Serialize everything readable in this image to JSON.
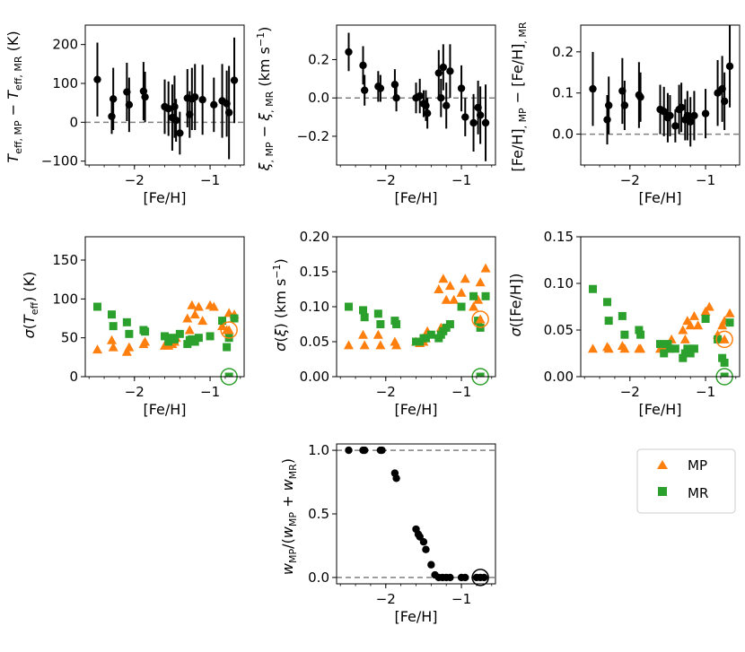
{
  "colors": {
    "mp": "#ff7f0e",
    "mr": "#2ca02c",
    "point": "#000000",
    "dash": "#808080",
    "legend_border": "#cccccc"
  },
  "legend": {
    "mp": "MP",
    "mr": "MR"
  },
  "chart_data": [
    {
      "id": "dTeff",
      "type": "scatter",
      "xlabel": "[Fe/H]",
      "ylabel": "T_eff,MP − T_eff,MR (K)",
      "xlim": [
        -2.65,
        -0.55
      ],
      "ylim": [
        -110,
        250
      ],
      "xticks": [
        -2,
        -1
      ],
      "xtick_labels": [
        "−2",
        "−1"
      ],
      "yticks": [
        -100,
        0,
        100,
        200
      ],
      "ytick_labels": [
        "−100",
        "0",
        "100",
        "200"
      ],
      "hlines": [
        0
      ],
      "points": [
        {
          "x": -2.49,
          "y": 110,
          "e": 95
        },
        {
          "x": -2.3,
          "y": 15,
          "e": 45
        },
        {
          "x": -2.28,
          "y": 60,
          "e": 80
        },
        {
          "x": -2.1,
          "y": 78,
          "e": 75
        },
        {
          "x": -2.07,
          "y": 45,
          "e": 70
        },
        {
          "x": -1.88,
          "y": 80,
          "e": 75
        },
        {
          "x": -1.86,
          "y": 65,
          "e": 65
        },
        {
          "x": -1.6,
          "y": 40,
          "e": 70
        },
        {
          "x": -1.55,
          "y": 35,
          "e": 70
        },
        {
          "x": -1.5,
          "y": 12,
          "e": 85
        },
        {
          "x": -1.47,
          "y": 40,
          "e": 80
        },
        {
          "x": -1.45,
          "y": 5,
          "e": 55
        },
        {
          "x": -1.4,
          "y": -28,
          "e": 55
        },
        {
          "x": -1.3,
          "y": 62,
          "e": 75
        },
        {
          "x": -1.27,
          "y": 20,
          "e": 60
        },
        {
          "x": -1.24,
          "y": 60,
          "e": 80
        },
        {
          "x": -1.2,
          "y": 65,
          "e": 85
        },
        {
          "x": -1.1,
          "y": 58,
          "e": 90
        },
        {
          "x": -0.95,
          "y": 45,
          "e": 70
        },
        {
          "x": -0.84,
          "y": 55,
          "e": 95
        },
        {
          "x": -0.78,
          "y": 48,
          "e": 85
        },
        {
          "x": -0.75,
          "y": 25,
          "e": 120
        },
        {
          "x": -0.68,
          "y": 108,
          "e": 110
        }
      ]
    },
    {
      "id": "dxi",
      "type": "scatter",
      "xlabel": "[Fe/H]",
      "ylabel": "ξ,MP − ξ,MR (km s⁻¹)",
      "xlim": [
        -2.65,
        -0.55
      ],
      "ylim": [
        -0.35,
        0.38
      ],
      "xticks": [
        -2,
        -1
      ],
      "xtick_labels": [
        "−2",
        "−1"
      ],
      "yticks": [
        -0.2,
        0.0,
        0.2
      ],
      "ytick_labels": [
        "−0.2",
        "0.0",
        "0.2"
      ],
      "hlines": [
        0
      ],
      "points": [
        {
          "x": -2.49,
          "y": 0.24,
          "e": 0.1
        },
        {
          "x": -2.3,
          "y": 0.17,
          "e": 0.1
        },
        {
          "x": -2.28,
          "y": 0.04,
          "e": 0.08
        },
        {
          "x": -2.1,
          "y": 0.06,
          "e": 0.08
        },
        {
          "x": -2.07,
          "y": 0.05,
          "e": 0.07
        },
        {
          "x": -1.88,
          "y": 0.07,
          "e": 0.08
        },
        {
          "x": -1.86,
          "y": 0.0,
          "e": 0.07
        },
        {
          "x": -1.6,
          "y": 0.0,
          "e": 0.08
        },
        {
          "x": -1.55,
          "y": 0.01,
          "e": 0.09
        },
        {
          "x": -1.5,
          "y": -0.03,
          "e": 0.07
        },
        {
          "x": -1.47,
          "y": -0.04,
          "e": 0.08
        },
        {
          "x": -1.45,
          "y": -0.08,
          "e": 0.08
        },
        {
          "x": -1.3,
          "y": 0.13,
          "e": 0.12
        },
        {
          "x": -1.27,
          "y": 0.0,
          "e": 0.1
        },
        {
          "x": -1.24,
          "y": 0.16,
          "e": 0.12
        },
        {
          "x": -1.2,
          "y": -0.04,
          "e": 0.12
        },
        {
          "x": -1.15,
          "y": 0.14,
          "e": 0.14
        },
        {
          "x": -1.0,
          "y": 0.05,
          "e": 0.12
        },
        {
          "x": -0.95,
          "y": -0.1,
          "e": 0.1
        },
        {
          "x": -0.84,
          "y": -0.13,
          "e": 0.15
        },
        {
          "x": -0.78,
          "y": -0.05,
          "e": 0.14
        },
        {
          "x": -0.75,
          "y": -0.09,
          "e": 0.15
        },
        {
          "x": -0.68,
          "y": -0.13,
          "e": 0.2
        }
      ]
    },
    {
      "id": "dfeh",
      "type": "scatter",
      "xlabel": "[Fe/H]",
      "ylabel": "[Fe/H],MP − [Fe/H],MR",
      "xlim": [
        -2.65,
        -0.55
      ],
      "ylim": [
        -0.075,
        0.265
      ],
      "xticks": [
        -2,
        -1
      ],
      "xtick_labels": [
        "−2",
        "−1"
      ],
      "yticks": [
        0.0,
        0.1,
        0.2
      ],
      "ytick_labels": [
        "0.0",
        "0.1",
        "0.2"
      ],
      "hlines": [
        0
      ],
      "points": [
        {
          "x": -2.49,
          "y": 0.11,
          "e": 0.09
        },
        {
          "x": -2.3,
          "y": 0.035,
          "e": 0.06
        },
        {
          "x": -2.28,
          "y": 0.07,
          "e": 0.07
        },
        {
          "x": -2.1,
          "y": 0.105,
          "e": 0.08
        },
        {
          "x": -2.07,
          "y": 0.07,
          "e": 0.06
        },
        {
          "x": -1.88,
          "y": 0.095,
          "e": 0.08
        },
        {
          "x": -1.86,
          "y": 0.09,
          "e": 0.06
        },
        {
          "x": -1.6,
          "y": 0.06,
          "e": 0.06
        },
        {
          "x": -1.55,
          "y": 0.055,
          "e": 0.06
        },
        {
          "x": -1.5,
          "y": 0.04,
          "e": 0.06
        },
        {
          "x": -1.47,
          "y": 0.045,
          "e": 0.05
        },
        {
          "x": -1.4,
          "y": 0.02,
          "e": 0.04
        },
        {
          "x": -1.35,
          "y": 0.06,
          "e": 0.06
        },
        {
          "x": -1.32,
          "y": 0.065,
          "e": 0.06
        },
        {
          "x": -1.27,
          "y": 0.035,
          "e": 0.05
        },
        {
          "x": -1.24,
          "y": 0.045,
          "e": 0.06
        },
        {
          "x": -1.2,
          "y": 0.03,
          "e": 0.06
        },
        {
          "x": -1.15,
          "y": 0.045,
          "e": 0.06
        },
        {
          "x": -1.0,
          "y": 0.05,
          "e": 0.06
        },
        {
          "x": -0.84,
          "y": 0.1,
          "e": 0.08
        },
        {
          "x": -0.78,
          "y": 0.11,
          "e": 0.08
        },
        {
          "x": -0.75,
          "y": 0.08,
          "e": 0.07
        },
        {
          "x": -0.68,
          "y": 0.165,
          "e": 0.1
        }
      ]
    },
    {
      "id": "sTeff",
      "type": "scatter",
      "xlabel": "[Fe/H]",
      "ylabel": "σ(T_eff) (K)",
      "xlim": [
        -2.65,
        -0.55
      ],
      "ylim": [
        0,
        180
      ],
      "xticks": [
        -2,
        -1
      ],
      "xtick_labels": [
        "−2",
        "−1"
      ],
      "yticks": [
        0,
        50,
        100,
        150
      ],
      "ytick_labels": [
        "0",
        "50",
        "100",
        "150"
      ],
      "series": [
        {
          "name": "MP",
          "marker": "triangle",
          "x": [
            -2.49,
            -2.3,
            -2.28,
            -2.1,
            -2.07,
            -1.88,
            -1.86,
            -1.6,
            -1.55,
            -1.5,
            -1.47,
            -1.45,
            -1.3,
            -1.27,
            -1.24,
            -1.2,
            -1.15,
            -1.1,
            -1.0,
            -0.95,
            -0.84,
            -0.78,
            -0.75,
            -0.68
          ],
          "y": [
            35,
            47,
            38,
            32,
            38,
            42,
            45,
            40,
            40,
            42,
            45,
            50,
            75,
            60,
            92,
            80,
            90,
            72,
            92,
            90,
            65,
            60,
            82,
            80
          ]
        },
        {
          "name": "MR",
          "marker": "square",
          "x": [
            -2.49,
            -2.3,
            -2.28,
            -2.1,
            -2.07,
            -1.88,
            -1.86,
            -1.6,
            -1.55,
            -1.5,
            -1.47,
            -1.4,
            -1.3,
            -1.27,
            -1.24,
            -1.2,
            -1.15,
            -1.0,
            -0.84,
            -0.78,
            -0.75,
            -0.68
          ],
          "y": [
            90,
            80,
            65,
            70,
            55,
            60,
            58,
            52,
            45,
            50,
            48,
            55,
            42,
            47,
            48,
            45,
            50,
            52,
            72,
            38,
            50,
            75
          ]
        }
      ],
      "circled": [
        {
          "series": "MP",
          "x": -0.75,
          "y": 60
        },
        {
          "series": "MR",
          "x": -0.75,
          "y": 0
        }
      ]
    },
    {
      "id": "sxi",
      "type": "scatter",
      "xlabel": "[Fe/H]",
      "ylabel": "σ(ξ) (km s⁻¹)",
      "xlim": [
        -2.65,
        -0.55
      ],
      "ylim": [
        0,
        0.2
      ],
      "xticks": [
        -2,
        -1
      ],
      "xtick_labels": [
        "−2",
        "−1"
      ],
      "yticks": [
        0.0,
        0.05,
        0.1,
        0.15,
        0.2
      ],
      "ytick_labels": [
        "0.00",
        "0.05",
        "0.10",
        "0.15",
        "0.20"
      ],
      "series": [
        {
          "name": "MP",
          "marker": "triangle",
          "x": [
            -2.49,
            -2.3,
            -2.28,
            -2.1,
            -2.07,
            -1.88,
            -1.86,
            -1.6,
            -1.55,
            -1.5,
            -1.47,
            -1.45,
            -1.3,
            -1.27,
            -1.24,
            -1.2,
            -1.15,
            -1.1,
            -1.0,
            -0.95,
            -0.84,
            -0.78,
            -0.75,
            -0.68
          ],
          "y": [
            0.045,
            0.06,
            0.045,
            0.06,
            0.045,
            0.05,
            0.045,
            0.05,
            0.048,
            0.05,
            0.055,
            0.065,
            0.125,
            0.07,
            0.14,
            0.11,
            0.13,
            0.11,
            0.12,
            0.14,
            0.1,
            0.11,
            0.135,
            0.155
          ]
        },
        {
          "name": "MR",
          "marker": "square",
          "x": [
            -2.49,
            -2.3,
            -2.28,
            -2.1,
            -2.07,
            -1.88,
            -1.86,
            -1.6,
            -1.55,
            -1.5,
            -1.47,
            -1.4,
            -1.3,
            -1.27,
            -1.24,
            -1.2,
            -1.15,
            -1.0,
            -0.84,
            -0.78,
            -0.75,
            -0.68
          ],
          "y": [
            0.1,
            0.095,
            0.085,
            0.09,
            0.075,
            0.08,
            0.075,
            0.05,
            0.05,
            0.055,
            0.055,
            0.06,
            0.055,
            0.06,
            0.065,
            0.07,
            0.075,
            0.1,
            0.115,
            0.08,
            0.07,
            0.115
          ]
        }
      ],
      "circled": [
        {
          "series": "MP",
          "x": -0.75,
          "y": 0.082
        },
        {
          "series": "MR",
          "x": -0.75,
          "y": 0.0
        }
      ]
    },
    {
      "id": "sfeh",
      "type": "scatter",
      "xlabel": "[Fe/H]",
      "ylabel": "σ([Fe/H])",
      "xlim": [
        -2.65,
        -0.55
      ],
      "ylim": [
        0,
        0.15
      ],
      "xticks": [
        -2,
        -1
      ],
      "xtick_labels": [
        "−2",
        "−1"
      ],
      "yticks": [
        0.0,
        0.05,
        0.1,
        0.15
      ],
      "ytick_labels": [
        "0.00",
        "0.05",
        "0.10",
        "0.15"
      ],
      "series": [
        {
          "name": "MP",
          "marker": "triangle",
          "x": [
            -2.49,
            -2.3,
            -2.28,
            -2.1,
            -2.07,
            -1.88,
            -1.86,
            -1.6,
            -1.55,
            -1.5,
            -1.47,
            -1.45,
            -1.3,
            -1.27,
            -1.24,
            -1.2,
            -1.15,
            -1.1,
            -1.0,
            -0.95,
            -0.84,
            -0.78,
            -0.75,
            -0.68
          ],
          "y": [
            0.03,
            0.032,
            0.03,
            0.033,
            0.03,
            0.03,
            0.03,
            0.03,
            0.03,
            0.03,
            0.032,
            0.04,
            0.05,
            0.04,
            0.06,
            0.055,
            0.065,
            0.055,
            0.07,
            0.075,
            0.045,
            0.055,
            0.06,
            0.068
          ]
        },
        {
          "name": "MR",
          "marker": "square",
          "x": [
            -2.49,
            -2.3,
            -2.28,
            -2.1,
            -2.07,
            -1.88,
            -1.86,
            -1.6,
            -1.55,
            -1.5,
            -1.47,
            -1.4,
            -1.3,
            -1.27,
            -1.24,
            -1.2,
            -1.15,
            -1.0,
            -0.84,
            -0.78,
            -0.75,
            -0.68
          ],
          "y": [
            0.094,
            0.08,
            0.06,
            0.065,
            0.045,
            0.05,
            0.045,
            0.035,
            0.025,
            0.035,
            0.03,
            0.03,
            0.02,
            0.025,
            0.03,
            0.025,
            0.03,
            0.062,
            0.04,
            0.02,
            0.015,
            0.058
          ]
        }
      ],
      "circled": [
        {
          "series": "MP",
          "x": -0.75,
          "y": 0.04
        },
        {
          "series": "MR",
          "x": -0.75,
          "y": 0.0
        }
      ]
    },
    {
      "id": "weight",
      "type": "scatter",
      "xlabel": "[Fe/H]",
      "ylabel": "w_MP/(w_MP + w_MR)",
      "xlim": [
        -2.65,
        -0.55
      ],
      "ylim": [
        -0.05,
        1.05
      ],
      "xticks": [
        -2,
        -1
      ],
      "xtick_labels": [
        "−2",
        "−1"
      ],
      "yticks": [
        0.0,
        0.5,
        1.0
      ],
      "ytick_labels": [
        "0.0",
        "0.5",
        "1.0"
      ],
      "hlines": [
        0,
        1
      ],
      "points": [
        {
          "x": -2.49,
          "y": 1.0
        },
        {
          "x": -2.3,
          "y": 1.0
        },
        {
          "x": -2.28,
          "y": 1.0
        },
        {
          "x": -2.07,
          "y": 1.0
        },
        {
          "x": -2.05,
          "y": 1.0
        },
        {
          "x": -1.88,
          "y": 0.82
        },
        {
          "x": -1.86,
          "y": 0.78
        },
        {
          "x": -1.6,
          "y": 0.38
        },
        {
          "x": -1.57,
          "y": 0.34
        },
        {
          "x": -1.55,
          "y": 0.32
        },
        {
          "x": -1.5,
          "y": 0.28
        },
        {
          "x": -1.47,
          "y": 0.22
        },
        {
          "x": -1.4,
          "y": 0.1
        },
        {
          "x": -1.35,
          "y": 0.02
        },
        {
          "x": -1.3,
          "y": 0.0
        },
        {
          "x": -1.25,
          "y": 0.0
        },
        {
          "x": -1.2,
          "y": 0.0
        },
        {
          "x": -1.15,
          "y": 0.0
        },
        {
          "x": -1.0,
          "y": 0.0
        },
        {
          "x": -0.95,
          "y": 0.0
        },
        {
          "x": -0.8,
          "y": 0.0
        },
        {
          "x": -0.75,
          "y": 0.0
        },
        {
          "x": -0.7,
          "y": 0.0
        }
      ],
      "circled": [
        {
          "series": "point",
          "x": -0.75,
          "y": 0.0
        }
      ]
    }
  ]
}
